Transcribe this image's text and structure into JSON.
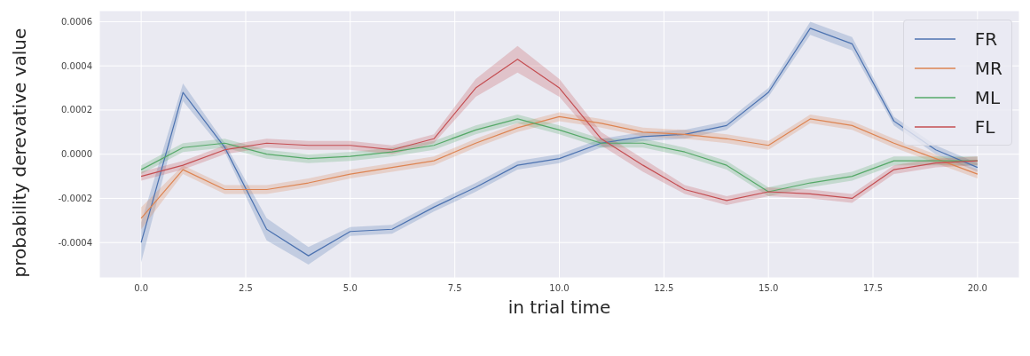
{
  "chart_data": {
    "type": "line",
    "xlabel": "in trial time",
    "ylabel": "probability derevative value",
    "x": [
      0,
      1,
      2,
      3,
      4,
      5,
      6,
      7,
      8,
      9,
      10,
      11,
      12,
      13,
      14,
      15,
      16,
      17,
      18,
      19,
      20
    ],
    "series": [
      {
        "name": "FR",
        "color": "#4c72b0",
        "values": [
          -0.0004,
          0.00028,
          3e-05,
          -0.00034,
          -0.00046,
          -0.00035,
          -0.00034,
          -0.00024,
          -0.00015,
          -5e-05,
          -2e-05,
          5e-05,
          8e-05,
          9e-05,
          0.00013,
          0.00028,
          0.00057,
          0.0005,
          0.00015,
          2e-05,
          -6e-05
        ],
        "lower": [
          -0.00049,
          0.00024,
          1e-05,
          -0.00039,
          -0.0005,
          -0.00037,
          -0.00036,
          -0.00026,
          -0.00017,
          -7e-05,
          -4e-05,
          3e-05,
          6e-05,
          7e-05,
          0.00011,
          0.00026,
          0.00054,
          0.00047,
          0.00013,
          0,
          -8e-05
        ],
        "upper": [
          -0.00031,
          0.00032,
          5e-05,
          -0.00029,
          -0.00042,
          -0.00033,
          -0.00032,
          -0.00022,
          -0.00013,
          -3e-05,
          0,
          7e-05,
          0.0001,
          0.00011,
          0.00015,
          0.0003,
          0.0006,
          0.00053,
          0.00017,
          4e-05,
          -4e-05
        ]
      },
      {
        "name": "MR",
        "color": "#dd8452",
        "values": [
          -0.00029,
          -7e-05,
          -0.00016,
          -0.00016,
          -0.00013,
          -9e-05,
          -6e-05,
          -3e-05,
          5e-05,
          0.00012,
          0.00017,
          0.00014,
          0.0001,
          9e-05,
          7e-05,
          4e-05,
          0.00016,
          0.00013,
          5e-05,
          -2e-05,
          -9e-05
        ],
        "lower": [
          -0.00034,
          -9e-05,
          -0.00018,
          -0.00018,
          -0.00015,
          -0.00011,
          -8e-05,
          -5e-05,
          3e-05,
          0.0001,
          0.00015,
          0.00012,
          8e-05,
          7e-05,
          5e-05,
          2e-05,
          0.00014,
          0.00011,
          3e-05,
          -4e-05,
          -0.00011
        ],
        "upper": [
          -0.00024,
          -5e-05,
          -0.00014,
          -0.00014,
          -0.00011,
          -7e-05,
          -4e-05,
          -1e-05,
          7e-05,
          0.00014,
          0.00019,
          0.00016,
          0.00012,
          0.00011,
          9e-05,
          6e-05,
          0.00018,
          0.00015,
          7e-05,
          0,
          -7e-05
        ]
      },
      {
        "name": "ML",
        "color": "#55a868",
        "values": [
          -7e-05,
          3e-05,
          5e-05,
          0,
          -2e-05,
          -1e-05,
          1e-05,
          4e-05,
          0.00011,
          0.00016,
          0.00011,
          5e-05,
          5e-05,
          1e-05,
          -5e-05,
          -0.00017,
          -0.00013,
          -0.0001,
          -3e-05,
          -3e-05,
          -3e-05
        ],
        "lower": [
          -9e-05,
          1e-05,
          3e-05,
          -2e-05,
          -4e-05,
          -3e-05,
          -1e-05,
          2e-05,
          9e-05,
          0.00014,
          9e-05,
          3e-05,
          3e-05,
          -1e-05,
          -7e-05,
          -0.00019,
          -0.00015,
          -0.00012,
          -5e-05,
          -5e-05,
          -5e-05
        ],
        "upper": [
          -5e-05,
          5e-05,
          7e-05,
          2e-05,
          0,
          1e-05,
          3e-05,
          6e-05,
          0.00013,
          0.00018,
          0.00013,
          7e-05,
          7e-05,
          3e-05,
          -3e-05,
          -0.00015,
          -0.00011,
          -8e-05,
          -1e-05,
          -1e-05,
          -1e-05
        ]
      },
      {
        "name": "FL",
        "color": "#c44e52",
        "values": [
          -0.0001,
          -5e-05,
          2e-05,
          5e-05,
          4e-05,
          4e-05,
          2e-05,
          7e-05,
          0.0003,
          0.00043,
          0.0003,
          7e-05,
          -5e-05,
          -0.00016,
          -0.00021,
          -0.00017,
          -0.00018,
          -0.0002,
          -7e-05,
          -4e-05,
          -3e-05
        ],
        "lower": [
          -0.00012,
          -7e-05,
          0,
          3e-05,
          2e-05,
          2e-05,
          0,
          5e-05,
          0.00026,
          0.00037,
          0.00026,
          4e-05,
          -8e-05,
          -0.00018,
          -0.00023,
          -0.00019,
          -0.0002,
          -0.00022,
          -9e-05,
          -6e-05,
          -5e-05
        ],
        "upper": [
          -8e-05,
          -3e-05,
          4e-05,
          7e-05,
          6e-05,
          6e-05,
          4e-05,
          9e-05,
          0.00034,
          0.00049,
          0.00034,
          0.0001,
          -2e-05,
          -0.00014,
          -0.00019,
          -0.00015,
          -0.00016,
          -0.00018,
          -5e-05,
          -2e-05,
          -1e-05
        ]
      }
    ],
    "xlim": [
      -1,
      21
    ],
    "xticks": [
      {
        "value": 0,
        "label": "0.0"
      },
      {
        "value": 2.5,
        "label": "2.5"
      },
      {
        "value": 5,
        "label": "5.0"
      },
      {
        "value": 7.5,
        "label": "7.5"
      },
      {
        "value": 10,
        "label": "10.0"
      },
      {
        "value": 12.5,
        "label": "12.5"
      },
      {
        "value": 15,
        "label": "15.0"
      },
      {
        "value": 17.5,
        "label": "17.5"
      },
      {
        "value": 20,
        "label": "20.0"
      }
    ],
    "ylim": [
      -0.00056,
      0.00065
    ],
    "yticks": [
      {
        "value": -0.0004,
        "label": "-0.0004"
      },
      {
        "value": -0.0002,
        "label": "-0.0002"
      },
      {
        "value": 0,
        "label": "0.0000"
      },
      {
        "value": 0.0002,
        "label": "0.0002"
      },
      {
        "value": 0.0004,
        "label": "0.0004"
      },
      {
        "value": 0.0006,
        "label": "0.0006"
      }
    ],
    "grid": true,
    "legend": "top right"
  }
}
